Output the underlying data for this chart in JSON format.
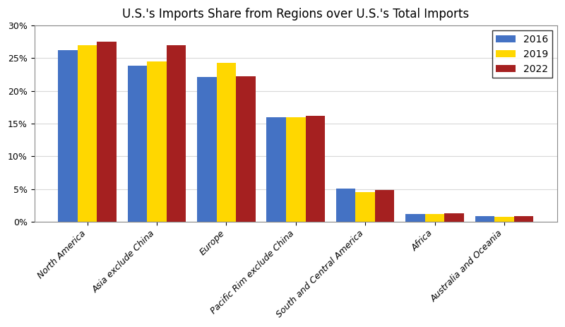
{
  "title": "U.S.'s Imports Share from Regions over U.S.'s Total Imports",
  "categories": [
    "North America",
    "Asia exclude China",
    "Europe",
    "Pacific Rim exclude China",
    "South and Central America",
    "Africa",
    "Australia and Oceania"
  ],
  "series": {
    "2016": [
      0.262,
      0.239,
      0.221,
      0.16,
      0.051,
      0.012,
      0.008
    ],
    "2019": [
      0.27,
      0.245,
      0.243,
      0.16,
      0.045,
      0.012,
      0.007
    ],
    "2022": [
      0.275,
      0.27,
      0.222,
      0.162,
      0.048,
      0.013,
      0.008
    ]
  },
  "colors": {
    "2016": "#4472C4",
    "2019": "#FFD700",
    "2022": "#A52020"
  },
  "ylim": [
    0,
    0.3
  ],
  "yticks": [
    0,
    0.05,
    0.1,
    0.15,
    0.2,
    0.25,
    0.3
  ],
  "yticklabels": [
    "0%",
    "5%",
    "10%",
    "15%",
    "20%",
    "25%",
    "30%"
  ],
  "legend_loc": "upper right",
  "bar_width": 0.28,
  "figsize": [
    8.0,
    4.63
  ],
  "dpi": 100,
  "background_color": "#FFFFFF",
  "grid_color": "#D8D8D8",
  "title_fontsize": 12,
  "tick_fontsize": 9,
  "legend_fontsize": 10,
  "spine_color": "#888888"
}
